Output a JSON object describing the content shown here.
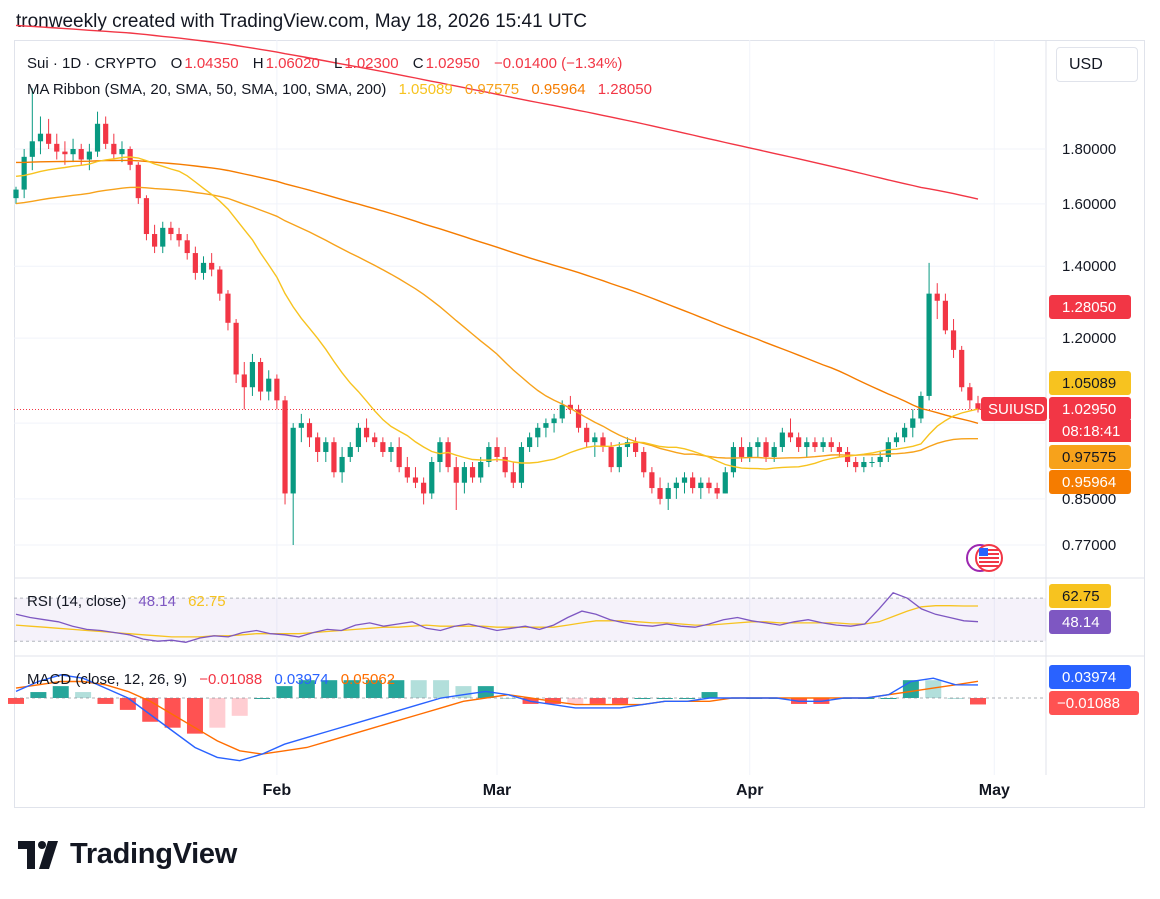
{
  "header": {
    "title": "tronweekly created with TradingView.com, May 18, 2026 15:41 UTC"
  },
  "toolbar": {
    "currency_label": "USD"
  },
  "legend": {
    "symbol": "Sui · 1D · CRYPTO",
    "o_label": "O",
    "o_value": "1.04350",
    "h_label": "H",
    "h_value": "1.06020",
    "l_label": "L",
    "l_value": "1.02300",
    "c_label": "C",
    "c_value": "1.02950",
    "change": "−0.01400 (−1.34%)",
    "ma_label": "MA Ribbon (SMA, 20, SMA, 50, SMA, 100, SMA, 200)",
    "ma_values": [
      "1.05089",
      "0.97575",
      "0.95964",
      "1.28050"
    ],
    "rsi_label": "RSI (14, close)",
    "rsi_values": [
      "48.14",
      "62.75"
    ],
    "macd_label": "MACD (close, 12, 26, 9)",
    "macd_values": [
      "−0.01088",
      "0.03974",
      "0.05062"
    ]
  },
  "colors": {
    "up": "#089981",
    "down": "#f23645",
    "ma20": "#f7c31f",
    "ma50": "#f7a21b",
    "ma100": "#f57c00",
    "ma200": "#f23645",
    "rsi": "#7e57c2",
    "rsi_ma": "#f7c31f",
    "macd": "#2962ff",
    "signal": "#ff6d00"
  },
  "footer": {
    "brand": "TradingView"
  },
  "chart_data": [
    {
      "type": "candlestick",
      "title": "Sui · 1D · CRYPTO",
      "x_ticks": [
        "Feb",
        "Mar",
        "Apr",
        "May"
      ],
      "y_ticks": [
        1.8,
        1.6,
        1.4,
        1.2,
        1.0,
        0.85,
        0.77
      ],
      "y_tick_labels": [
        "1.80000",
        "1.60000",
        "1.40000",
        "1.20000",
        "0.85000",
        "0.77000"
      ],
      "y_log_scale": true,
      "ylim": [
        0.72,
        2.2
      ],
      "price_tags": [
        {
          "label": "",
          "value": "1.28050",
          "color": "#f23645"
        },
        {
          "label": "",
          "value": "1.05089",
          "color": "#f7c31f"
        },
        {
          "label": "SUIUSD",
          "value": "1.02950",
          "sub": "08:18:41",
          "color": "#f23645"
        },
        {
          "label": "",
          "value": "0.97575",
          "color": "#f7a21b"
        },
        {
          "label": "",
          "value": "0.95964",
          "color": "#f57c00"
        }
      ],
      "candles": [
        [
          1.62,
          1.66,
          1.6,
          1.65
        ],
        [
          1.65,
          1.8,
          1.62,
          1.77
        ],
        [
          1.77,
          2.05,
          1.72,
          1.83
        ],
        [
          1.83,
          1.93,
          1.78,
          1.86
        ],
        [
          1.86,
          1.92,
          1.8,
          1.82
        ],
        [
          1.82,
          1.86,
          1.76,
          1.79
        ],
        [
          1.79,
          1.83,
          1.74,
          1.78
        ],
        [
          1.78,
          1.84,
          1.75,
          1.8
        ],
        [
          1.8,
          1.82,
          1.74,
          1.76
        ],
        [
          1.76,
          1.82,
          1.72,
          1.79
        ],
        [
          1.79,
          1.95,
          1.77,
          1.9
        ],
        [
          1.9,
          1.93,
          1.8,
          1.82
        ],
        [
          1.82,
          1.86,
          1.76,
          1.78
        ],
        [
          1.78,
          1.83,
          1.75,
          1.8
        ],
        [
          1.8,
          1.81,
          1.72,
          1.74
        ],
        [
          1.74,
          1.75,
          1.6,
          1.62
        ],
        [
          1.62,
          1.63,
          1.48,
          1.5
        ],
        [
          1.5,
          1.53,
          1.44,
          1.46
        ],
        [
          1.46,
          1.54,
          1.44,
          1.52
        ],
        [
          1.52,
          1.54,
          1.48,
          1.5
        ],
        [
          1.5,
          1.52,
          1.46,
          1.48
        ],
        [
          1.48,
          1.5,
          1.42,
          1.44
        ],
        [
          1.44,
          1.46,
          1.36,
          1.38
        ],
        [
          1.38,
          1.43,
          1.36,
          1.41
        ],
        [
          1.41,
          1.44,
          1.37,
          1.39
        ],
        [
          1.39,
          1.4,
          1.3,
          1.32
        ],
        [
          1.32,
          1.33,
          1.22,
          1.24
        ],
        [
          1.24,
          1.25,
          1.09,
          1.11
        ],
        [
          1.11,
          1.14,
          1.03,
          1.08
        ],
        [
          1.08,
          1.16,
          1.06,
          1.14
        ],
        [
          1.14,
          1.15,
          1.05,
          1.07
        ],
        [
          1.07,
          1.12,
          1.05,
          1.1
        ],
        [
          1.1,
          1.11,
          1.03,
          1.05
        ],
        [
          1.05,
          1.06,
          0.84,
          0.86
        ],
        [
          0.86,
          1.0,
          0.77,
          0.99
        ],
        [
          0.99,
          1.02,
          0.96,
          1.0
        ],
        [
          1.0,
          1.01,
          0.95,
          0.97
        ],
        [
          0.97,
          0.98,
          0.92,
          0.94
        ],
        [
          0.94,
          0.97,
          0.92,
          0.96
        ],
        [
          0.96,
          0.97,
          0.89,
          0.9
        ],
        [
          0.9,
          0.95,
          0.88,
          0.93
        ],
        [
          0.93,
          0.96,
          0.92,
          0.95
        ],
        [
          0.95,
          1.0,
          0.94,
          0.99
        ],
        [
          0.99,
          1.01,
          0.96,
          0.97
        ],
        [
          0.97,
          0.98,
          0.95,
          0.96
        ],
        [
          0.96,
          0.97,
          0.93,
          0.94
        ],
        [
          0.94,
          0.96,
          0.92,
          0.95
        ],
        [
          0.95,
          0.97,
          0.9,
          0.91
        ],
        [
          0.91,
          0.93,
          0.88,
          0.89
        ],
        [
          0.89,
          0.91,
          0.87,
          0.88
        ],
        [
          0.88,
          0.89,
          0.84,
          0.86
        ],
        [
          0.86,
          0.93,
          0.85,
          0.92
        ],
        [
          0.92,
          0.97,
          0.9,
          0.96
        ],
        [
          0.96,
          0.97,
          0.9,
          0.91
        ],
        [
          0.91,
          0.93,
          0.83,
          0.88
        ],
        [
          0.88,
          0.92,
          0.86,
          0.91
        ],
        [
          0.91,
          0.92,
          0.88,
          0.89
        ],
        [
          0.89,
          0.93,
          0.88,
          0.92
        ],
        [
          0.92,
          0.96,
          0.91,
          0.95
        ],
        [
          0.95,
          0.97,
          0.92,
          0.93
        ],
        [
          0.93,
          0.95,
          0.89,
          0.9
        ],
        [
          0.9,
          0.92,
          0.87,
          0.88
        ],
        [
          0.88,
          0.96,
          0.87,
          0.95
        ],
        [
          0.95,
          0.98,
          0.94,
          0.97
        ],
        [
          0.97,
          1.0,
          0.95,
          0.99
        ],
        [
          0.99,
          1.01,
          0.97,
          1.0
        ],
        [
          1.0,
          1.02,
          0.98,
          1.01
        ],
        [
          1.01,
          1.05,
          1.0,
          1.04
        ],
        [
          1.04,
          1.06,
          1.02,
          1.03
        ],
        [
          1.03,
          1.04,
          0.98,
          0.99
        ],
        [
          0.99,
          1.0,
          0.95,
          0.96
        ],
        [
          0.96,
          0.98,
          0.93,
          0.97
        ],
        [
          0.97,
          0.98,
          0.94,
          0.95
        ],
        [
          0.95,
          0.96,
          0.9,
          0.91
        ],
        [
          0.91,
          0.96,
          0.9,
          0.95
        ],
        [
          0.95,
          0.97,
          0.93,
          0.96
        ],
        [
          0.96,
          0.97,
          0.93,
          0.94
        ],
        [
          0.94,
          0.95,
          0.89,
          0.9
        ],
        [
          0.9,
          0.91,
          0.86,
          0.87
        ],
        [
          0.87,
          0.89,
          0.84,
          0.85
        ],
        [
          0.85,
          0.88,
          0.83,
          0.87
        ],
        [
          0.87,
          0.89,
          0.85,
          0.88
        ],
        [
          0.88,
          0.9,
          0.86,
          0.89
        ],
        [
          0.89,
          0.9,
          0.86,
          0.87
        ],
        [
          0.87,
          0.89,
          0.85,
          0.88
        ],
        [
          0.88,
          0.89,
          0.86,
          0.87
        ],
        [
          0.87,
          0.88,
          0.85,
          0.86
        ],
        [
          0.86,
          0.91,
          0.86,
          0.9
        ],
        [
          0.9,
          0.96,
          0.89,
          0.95
        ],
        [
          0.95,
          0.97,
          0.92,
          0.93
        ],
        [
          0.93,
          0.96,
          0.92,
          0.95
        ],
        [
          0.95,
          0.97,
          0.93,
          0.96
        ],
        [
          0.96,
          0.97,
          0.92,
          0.93
        ],
        [
          0.93,
          0.96,
          0.92,
          0.95
        ],
        [
          0.95,
          0.99,
          0.94,
          0.98
        ],
        [
          0.98,
          1.01,
          0.96,
          0.97
        ],
        [
          0.97,
          0.98,
          0.94,
          0.95
        ],
        [
          0.95,
          0.97,
          0.93,
          0.96
        ],
        [
          0.96,
          0.97,
          0.94,
          0.95
        ],
        [
          0.95,
          0.97,
          0.94,
          0.96
        ],
        [
          0.96,
          0.97,
          0.94,
          0.95
        ],
        [
          0.95,
          0.96,
          0.93,
          0.94
        ],
        [
          0.94,
          0.95,
          0.91,
          0.92
        ],
        [
          0.92,
          0.93,
          0.9,
          0.91
        ],
        [
          0.91,
          0.93,
          0.9,
          0.92
        ],
        [
          0.92,
          0.93,
          0.91,
          0.92
        ],
        [
          0.92,
          0.94,
          0.91,
          0.93
        ],
        [
          0.93,
          0.97,
          0.92,
          0.96
        ],
        [
          0.96,
          0.98,
          0.95,
          0.97
        ],
        [
          0.97,
          1.0,
          0.96,
          0.99
        ],
        [
          0.99,
          1.03,
          0.97,
          1.01
        ],
        [
          1.01,
          1.07,
          1.0,
          1.06
        ],
        [
          1.06,
          1.41,
          1.05,
          1.32
        ],
        [
          1.32,
          1.35,
          1.25,
          1.3
        ],
        [
          1.3,
          1.32,
          1.21,
          1.22
        ],
        [
          1.22,
          1.25,
          1.15,
          1.17
        ],
        [
          1.17,
          1.18,
          1.07,
          1.08
        ],
        [
          1.08,
          1.09,
          1.03,
          1.05
        ],
        [
          1.0435,
          1.0602,
          1.023,
          1.0295
        ]
      ],
      "ma_ribbon": {
        "ma20_end": 1.05089,
        "ma50_end": 0.97575,
        "ma100_end": 0.95964,
        "ma200_end": 1.2805
      }
    },
    {
      "type": "line",
      "title": "RSI (14, close)",
      "series": [
        {
          "name": "RSI",
          "values": [
            55,
            52,
            50,
            48,
            44,
            41,
            40,
            38,
            36,
            32,
            30,
            31,
            29,
            33,
            35,
            34,
            38,
            40,
            37,
            36,
            34,
            38,
            41,
            40,
            45,
            47,
            44,
            46,
            48,
            42,
            40,
            44,
            46,
            43,
            40,
            42,
            44,
            41,
            45,
            52,
            58,
            55,
            50,
            47,
            45,
            44,
            46,
            44,
            43,
            46,
            50,
            52,
            49,
            47,
            45,
            48,
            50,
            47,
            45,
            44,
            46,
            60,
            75,
            70,
            60,
            55,
            52,
            49,
            48.14
          ]
        },
        {
          "name": "RSI MA",
          "values": [
            45,
            44,
            43,
            42,
            41,
            40,
            39,
            38,
            37,
            36,
            35,
            34,
            34,
            34,
            35,
            35,
            36,
            37,
            37,
            37,
            37,
            38,
            39,
            40,
            41,
            42,
            43,
            43,
            44,
            45,
            44,
            44,
            44,
            44,
            43,
            43,
            43,
            43,
            43,
            45,
            47,
            49,
            49,
            49,
            48,
            47,
            47,
            46,
            45,
            45,
            46,
            47,
            48,
            48,
            47,
            47,
            47,
            47,
            47,
            46,
            46,
            48,
            53,
            58,
            62,
            63,
            63,
            62.75,
            62.75
          ]
        }
      ],
      "ylim": [
        20,
        85
      ]
    },
    {
      "type": "line",
      "title": "MACD (close, 12, 26, 9)",
      "series": [
        {
          "name": "MACD",
          "values": [
            0.02,
            0.05,
            0.07,
            0.06,
            0.03,
            0.0,
            -0.05,
            -0.1,
            -0.15,
            -0.18,
            -0.19,
            -0.17,
            -0.14,
            -0.12,
            -0.1,
            -0.08,
            -0.06,
            -0.04,
            -0.02,
            0.0,
            0.01,
            0.02,
            0.01,
            -0.01,
            -0.02,
            -0.03,
            -0.03,
            -0.03,
            -0.02,
            -0.01,
            -0.01,
            0.0,
            0.0,
            0.0,
            0.0,
            -0.01,
            -0.01,
            0.0,
            0.0,
            0.01,
            0.05,
            0.06,
            0.04,
            0.03974
          ]
        },
        {
          "name": "Signal",
          "values": [
            0.03,
            0.04,
            0.05,
            0.05,
            0.04,
            0.02,
            -0.01,
            -0.05,
            -0.09,
            -0.13,
            -0.16,
            -0.17,
            -0.16,
            -0.15,
            -0.13,
            -0.11,
            -0.09,
            -0.07,
            -0.05,
            -0.03,
            -0.01,
            0.0,
            0.01,
            0.0,
            -0.01,
            -0.02,
            -0.02,
            -0.02,
            -0.02,
            -0.01,
            -0.01,
            -0.01,
            0.0,
            0.0,
            0.0,
            0.0,
            0.0,
            0.0,
            0.0,
            0.01,
            0.02,
            0.03,
            0.04,
            0.05062
          ]
        }
      ],
      "histogram_last": -0.01088,
      "price_tags": [
        "0.03974",
        "−0.01088"
      ]
    }
  ]
}
